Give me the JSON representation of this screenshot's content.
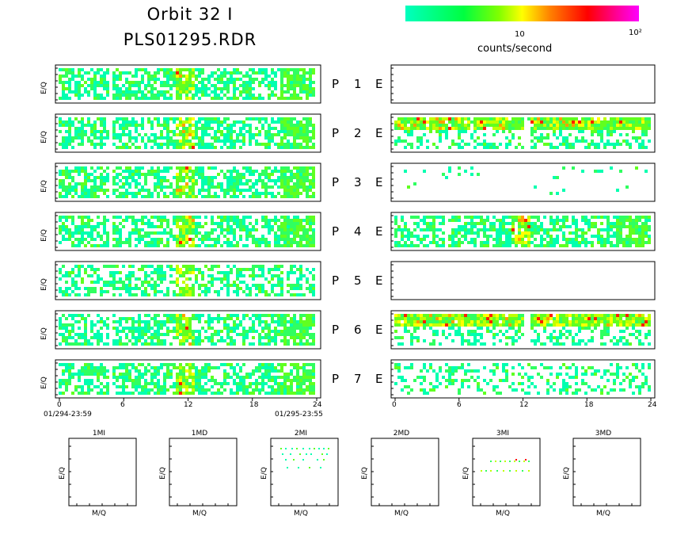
{
  "header": {
    "title_line1": "Orbit 32 I",
    "title_line2": "PLS01295.RDR"
  },
  "colorbar": {
    "tick_10": "10",
    "tick_100": "10²",
    "units": "counts/second",
    "colors": [
      "#00ffc0",
      "#00ff00",
      "#ffff00",
      "#ff8000",
      "#ff0000",
      "#ff00ff"
    ],
    "scale": "log"
  },
  "panel_axis_label": "E/Q",
  "x_ticks": [
    "0",
    "6",
    "12",
    "18",
    "24"
  ],
  "date_start": "01/294-23:59",
  "date_end": "01/295-23:55",
  "rows": [
    {
      "p": "P",
      "n": "1",
      "e": "E"
    },
    {
      "p": "P",
      "n": "2",
      "e": "E"
    },
    {
      "p": "P",
      "n": "3",
      "e": "E"
    },
    {
      "p": "P",
      "n": "4",
      "e": "E"
    },
    {
      "p": "P",
      "n": "5",
      "e": "E"
    },
    {
      "p": "P",
      "n": "6",
      "e": "E"
    },
    {
      "p": "P",
      "n": "7",
      "e": "E"
    }
  ],
  "chart_data": {
    "type": "heatmap",
    "xlim": [
      0,
      24
    ],
    "x_ticks": [
      0,
      6,
      12,
      18,
      24
    ],
    "color_scale": "log counts/second",
    "left_panels": [
      {
        "name": "P 1",
        "coverage": "dense"
      },
      {
        "name": "P 2",
        "coverage": "dense"
      },
      {
        "name": "P 3",
        "coverage": "dense"
      },
      {
        "name": "P 4",
        "coverage": "dense"
      },
      {
        "name": "P 5",
        "coverage": "medium"
      },
      {
        "name": "P 6",
        "coverage": "dense"
      },
      {
        "name": "P 7",
        "coverage": "dense"
      }
    ],
    "right_panels": [
      {
        "name": "E 1",
        "coverage": "empty"
      },
      {
        "name": "E 2",
        "coverage": "band"
      },
      {
        "name": "E 3",
        "coverage": "sparse"
      },
      {
        "name": "E 4",
        "coverage": "dense"
      },
      {
        "name": "E 5",
        "coverage": "empty"
      },
      {
        "name": "E 6",
        "coverage": "band"
      },
      {
        "name": "E 7",
        "coverage": "medium"
      }
    ]
  },
  "small_plots": [
    {
      "title": "1MI",
      "ylabel": "E/Q",
      "xlabel": "M/Q"
    },
    {
      "title": "1MD",
      "ylabel": "E/Q",
      "xlabel": "M/Q"
    },
    {
      "title": "2MI",
      "ylabel": "E/Q",
      "xlabel": "M/Q"
    },
    {
      "title": "2MD",
      "ylabel": "E/Q",
      "xlabel": "M/Q"
    },
    {
      "title": "3MI",
      "ylabel": "E/Q",
      "xlabel": "M/Q"
    },
    {
      "title": "3MD",
      "ylabel": "E/Q",
      "xlabel": "M/Q"
    }
  ]
}
